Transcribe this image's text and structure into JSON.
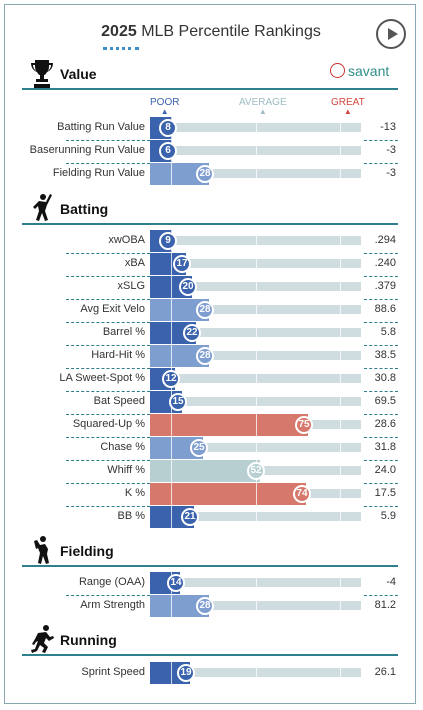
{
  "header": {
    "year": "2025",
    "title": "MLB Percentile Rankings"
  },
  "brand": {
    "name": "savant"
  },
  "legend": {
    "poor": "POOR",
    "average": "AVERAGE",
    "great": "GREAT"
  },
  "colors": {
    "poor_blue": "#3b63ad",
    "mid_blue": "#7f9ed0",
    "neutral": "#b8cfd2",
    "great_red": "#d6786c",
    "track": "#cfdde1",
    "accent_line": "#2f7f8e"
  },
  "icons": {
    "value": "trophy-icon",
    "batting": "batter-icon",
    "fielding": "fielder-icon",
    "running": "runner-icon",
    "play": "play-icon",
    "brand": "baseball-icon"
  },
  "sections": [
    {
      "key": "value",
      "title": "Value",
      "rows": [
        {
          "label": "Batting Run Value",
          "percentile": 8,
          "value": "-13"
        },
        {
          "label": "Baserunning Run Value",
          "percentile": 6,
          "value": "-3"
        },
        {
          "label": "Fielding Run Value",
          "percentile": 28,
          "value": "-3"
        }
      ]
    },
    {
      "key": "batting",
      "title": "Batting",
      "rows": [
        {
          "label": "xwOBA",
          "percentile": 9,
          "value": ".294"
        },
        {
          "label": "xBA",
          "percentile": 17,
          "value": ".240"
        },
        {
          "label": "xSLG",
          "percentile": 20,
          "value": ".379"
        },
        {
          "label": "Avg Exit Velo",
          "percentile": 28,
          "value": "88.6"
        },
        {
          "label": "Barrel %",
          "percentile": 22,
          "value": "5.8"
        },
        {
          "label": "Hard-Hit %",
          "percentile": 28,
          "value": "38.5"
        },
        {
          "label": "LA Sweet-Spot %",
          "percentile": 12,
          "value": "30.8"
        },
        {
          "label": "Bat Speed",
          "percentile": 15,
          "value": "69.5"
        },
        {
          "label": "Squared-Up %",
          "percentile": 75,
          "value": "28.6"
        },
        {
          "label": "Chase %",
          "percentile": 25,
          "value": "31.8"
        },
        {
          "label": "Whiff %",
          "percentile": 52,
          "value": "24.0"
        },
        {
          "label": "K %",
          "percentile": 74,
          "value": "17.5"
        },
        {
          "label": "BB %",
          "percentile": 21,
          "value": "5.9"
        }
      ]
    },
    {
      "key": "fielding",
      "title": "Fielding",
      "rows": [
        {
          "label": "Range (OAA)",
          "percentile": 14,
          "value": "-4"
        },
        {
          "label": "Arm Strength",
          "percentile": 28,
          "value": "81.2"
        }
      ]
    },
    {
      "key": "running",
      "title": "Running",
      "rows": [
        {
          "label": "Sprint Speed",
          "percentile": 19,
          "value": "26.1"
        }
      ]
    }
  ]
}
